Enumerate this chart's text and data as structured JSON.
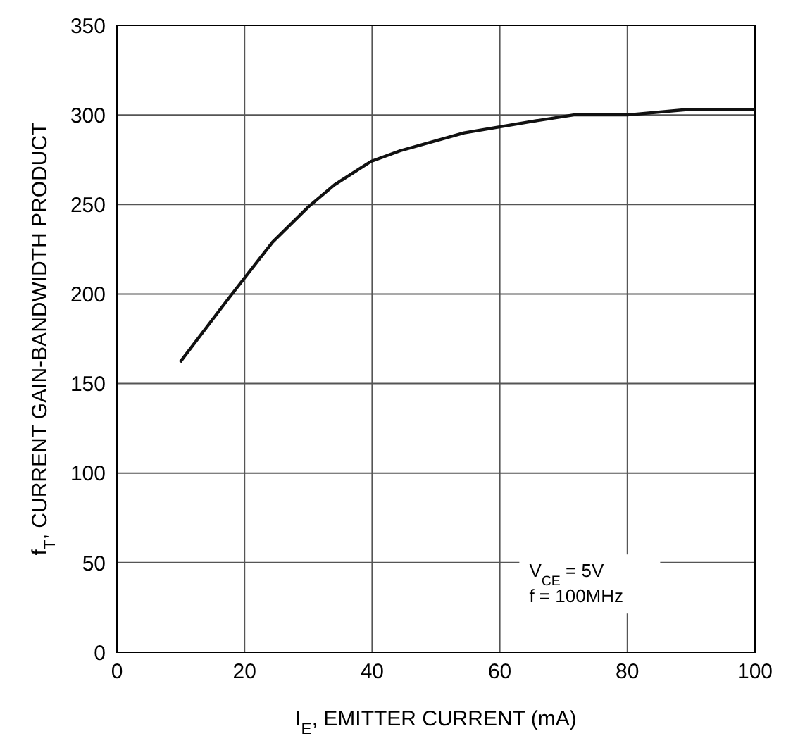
{
  "chart_data": {
    "type": "line",
    "xlabel": "I$_{E}$, EMITTER CURRENT  (mA)",
    "ylabel": "f$_{T}$, CURRENT GAIN-BANDWIDTH PRODUCT",
    "x": [
      9.9,
      17.6,
      24.4,
      30.1,
      34.1,
      39.8,
      44.4,
      54.4,
      64.4,
      71.6,
      80,
      89.4,
      100
    ],
    "series": [
      {
        "color": "#111111",
        "values": [
          162,
          198,
          229,
          249,
          261,
          274,
          280,
          290,
          296,
          300,
          300,
          303,
          303
        ]
      }
    ],
    "xlim": [
      0,
      100
    ],
    "xticks": [
      0,
      20,
      40,
      60,
      80,
      100
    ],
    "ylim": [
      0,
      350
    ],
    "yticks": [
      0,
      50,
      100,
      150,
      200,
      250,
      300,
      350
    ],
    "grid": true,
    "marker": "none",
    "line_style": "solid",
    "annotations": [
      "V$_{CE}$ = 5V",
      "f = 100MHz"
    ]
  }
}
